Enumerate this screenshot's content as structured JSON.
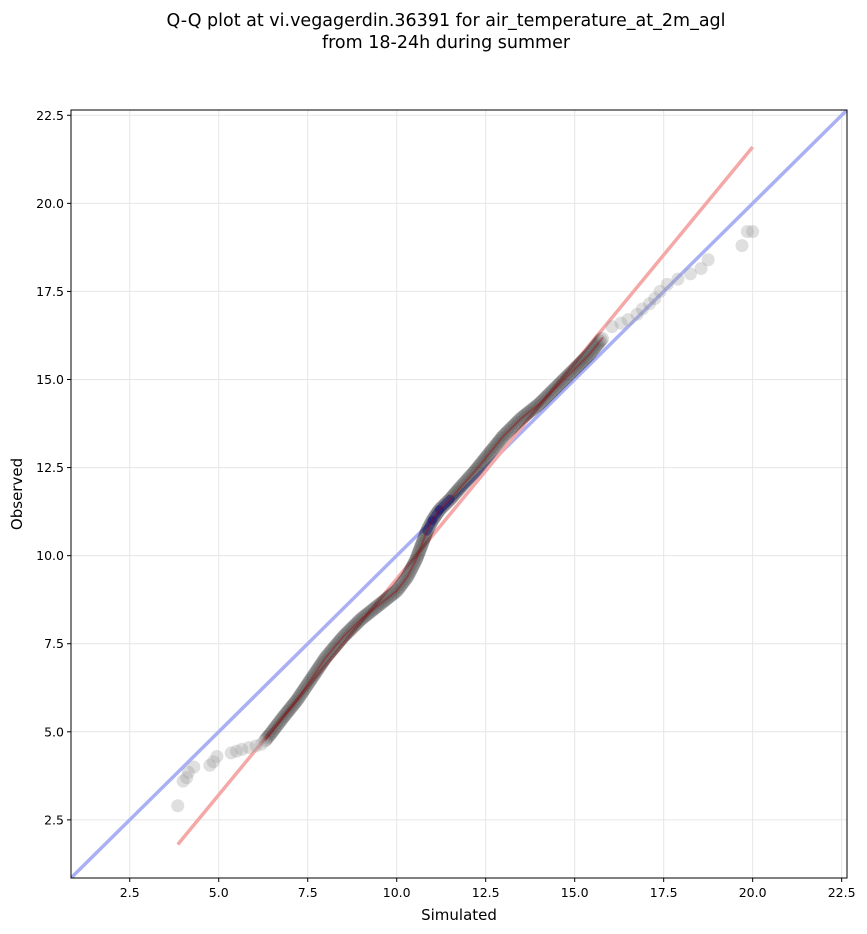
{
  "chart_data": {
    "type": "scatter",
    "title_lines": [
      "Q-Q plot at vi.vegagerdin.36391 for air_temperature_at_2m_agl",
      "from 18-24h during summer"
    ],
    "xlabel": "Simulated",
    "ylabel": "Observed",
    "xlim": [
      0.85,
      22.65
    ],
    "ylim": [
      0.85,
      22.65
    ],
    "xticks": [
      "2.5",
      "5.0",
      "7.5",
      "10.0",
      "12.5",
      "15.0",
      "17.5",
      "20.0",
      "22.5"
    ],
    "yticks": [
      "2.5",
      "5.0",
      "7.5",
      "10.0",
      "12.5",
      "15.0",
      "17.5",
      "20.0",
      "22.5"
    ],
    "grid": true,
    "identity_line": {
      "from": [
        0.85,
        0.85
      ],
      "to": [
        22.65,
        22.65
      ],
      "color": "#aab0f4"
    },
    "fit_line": {
      "from": [
        3.85,
        1.8
      ],
      "to": [
        20.0,
        21.6
      ],
      "color": "#f5a8a8"
    },
    "points_color": "#000000",
    "core_highlight_color": "#1a1a7a",
    "sparse_points": [
      [
        3.85,
        2.9
      ],
      [
        4.0,
        3.6
      ],
      [
        4.1,
        3.7
      ],
      [
        4.15,
        3.85
      ],
      [
        4.3,
        4.0
      ],
      [
        4.75,
        4.05
      ],
      [
        4.85,
        4.15
      ],
      [
        4.95,
        4.3
      ],
      [
        5.35,
        4.4
      ],
      [
        5.5,
        4.45
      ],
      [
        5.65,
        4.5
      ],
      [
        5.85,
        4.55
      ],
      [
        6.05,
        4.6
      ],
      [
        6.2,
        4.65
      ],
      [
        16.05,
        16.5
      ],
      [
        16.3,
        16.6
      ],
      [
        16.5,
        16.7
      ],
      [
        16.75,
        16.85
      ],
      [
        16.9,
        17.0
      ],
      [
        17.1,
        17.15
      ],
      [
        17.25,
        17.3
      ],
      [
        17.4,
        17.5
      ],
      [
        17.6,
        17.7
      ],
      [
        17.9,
        17.85
      ],
      [
        18.25,
        18.0
      ],
      [
        18.55,
        18.15
      ],
      [
        18.75,
        18.4
      ],
      [
        19.7,
        18.8
      ],
      [
        19.85,
        19.2
      ],
      [
        20.0,
        19.2
      ]
    ],
    "dense_curve": [
      [
        6.3,
        4.75
      ],
      [
        6.5,
        5.0
      ],
      [
        6.8,
        5.4
      ],
      [
        7.2,
        5.9
      ],
      [
        7.6,
        6.5
      ],
      [
        8.0,
        7.1
      ],
      [
        8.5,
        7.7
      ],
      [
        9.0,
        8.2
      ],
      [
        9.5,
        8.6
      ],
      [
        10.0,
        9.0
      ],
      [
        10.3,
        9.4
      ],
      [
        10.55,
        9.9
      ],
      [
        10.7,
        10.3
      ],
      [
        10.85,
        10.7
      ],
      [
        11.0,
        11.0
      ],
      [
        11.2,
        11.3
      ],
      [
        11.5,
        11.6
      ],
      [
        11.8,
        11.95
      ],
      [
        12.2,
        12.4
      ],
      [
        12.6,
        12.9
      ],
      [
        13.0,
        13.4
      ],
      [
        13.5,
        13.9
      ],
      [
        14.0,
        14.3
      ],
      [
        14.5,
        14.8
      ],
      [
        15.0,
        15.3
      ],
      [
        15.4,
        15.7
      ],
      [
        15.8,
        16.2
      ]
    ]
  }
}
